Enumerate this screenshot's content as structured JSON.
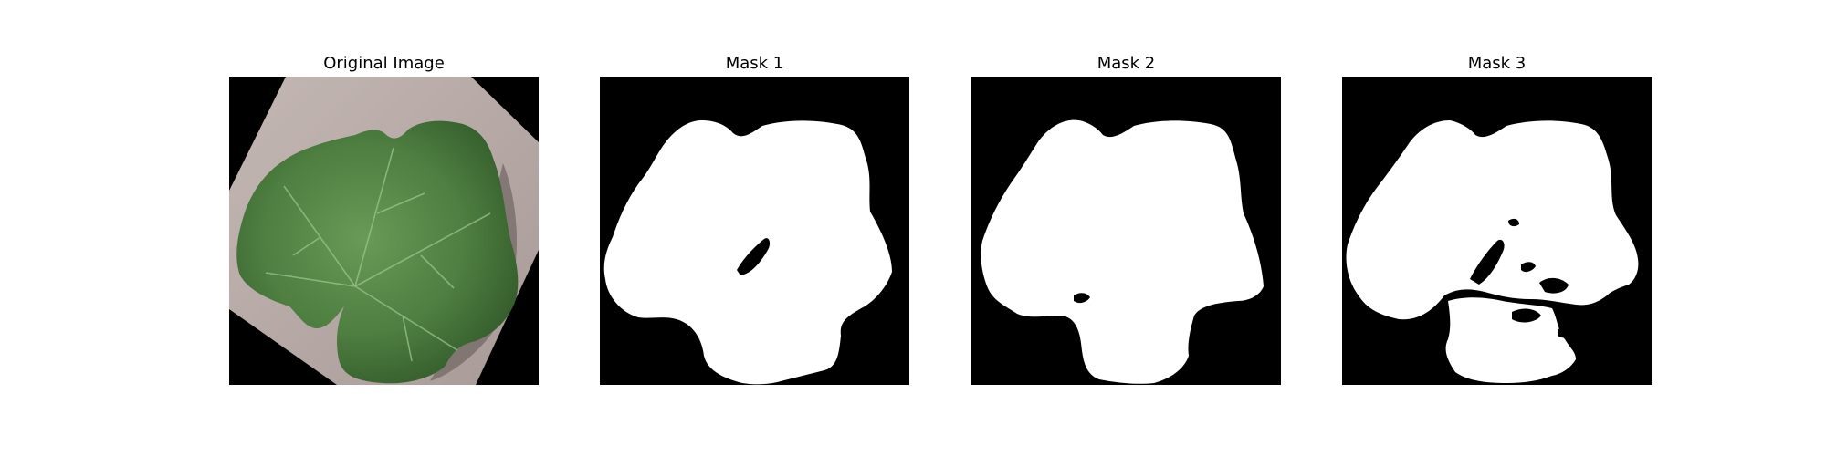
{
  "panels": [
    {
      "title": "Original Image"
    },
    {
      "title": "Mask 1"
    },
    {
      "title": "Mask 2"
    },
    {
      "title": "Mask 3"
    }
  ],
  "colors": {
    "background": "#ffffff",
    "mask_background": "#000000",
    "mask_foreground": "#ffffff",
    "leaf_dark": "#3f6a34",
    "leaf_mid": "#5d8c4d",
    "paper": "#b7aaa6"
  }
}
